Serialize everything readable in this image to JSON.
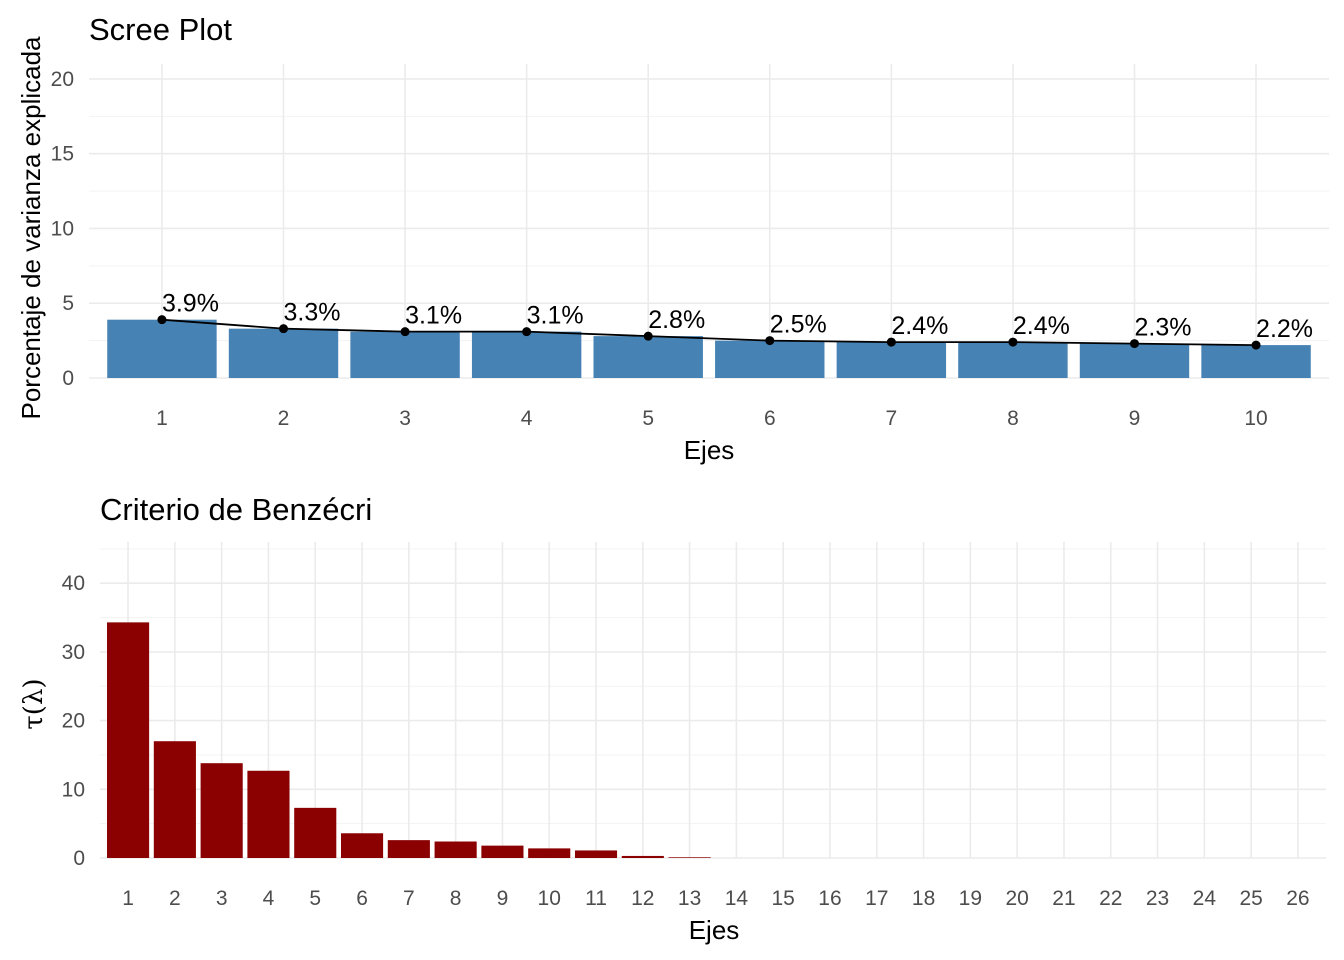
{
  "chart_data": [
    {
      "type": "bar",
      "title": "Scree Plot",
      "xlabel": "Ejes",
      "ylabel": "Porcentaje de varianza explicada",
      "categories": [
        "1",
        "2",
        "3",
        "4",
        "5",
        "6",
        "7",
        "8",
        "9",
        "10"
      ],
      "values": [
        3.9,
        3.3,
        3.1,
        3.1,
        2.8,
        2.5,
        2.4,
        2.4,
        2.3,
        2.2
      ],
      "data_labels": [
        "3.9%",
        "3.3%",
        "3.1%",
        "3.1%",
        "2.8%",
        "2.5%",
        "2.4%",
        "2.4%",
        "2.3%",
        "2.2%"
      ],
      "overlay": "line with points",
      "ylim": [
        0,
        21
      ],
      "yticks": [
        0,
        5,
        10,
        15,
        20
      ],
      "grid": true,
      "bar_color": "#4682b4",
      "line_color": "#000000"
    },
    {
      "type": "bar",
      "title": "Criterio de Benzécri",
      "xlabel": "Ejes",
      "ylabel": "τ(λ)",
      "categories": [
        "1",
        "2",
        "3",
        "4",
        "5",
        "6",
        "7",
        "8",
        "9",
        "10",
        "11",
        "12",
        "13",
        "14",
        "15",
        "16",
        "17",
        "18",
        "19",
        "20",
        "21",
        "22",
        "23",
        "24",
        "25",
        "26"
      ],
      "values": [
        34.3,
        17.0,
        13.8,
        12.7,
        7.3,
        3.6,
        2.6,
        2.4,
        1.8,
        1.4,
        1.1,
        0.3,
        0.1,
        0,
        0,
        0,
        0,
        0,
        0,
        0,
        0,
        0,
        0,
        0,
        0,
        0
      ],
      "ylim": [
        0,
        46
      ],
      "yticks": [
        0,
        10,
        20,
        30,
        40
      ],
      "grid": true,
      "bar_color": "#8b0000"
    }
  ]
}
